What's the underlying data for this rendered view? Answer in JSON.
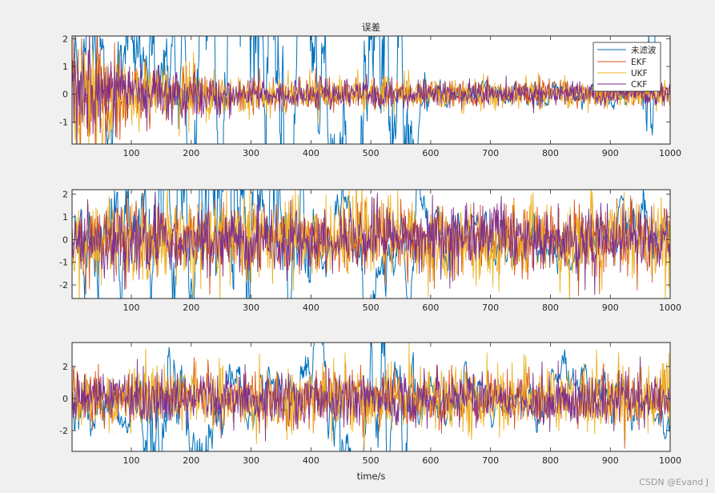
{
  "figure": {
    "background": "#f0f0f0",
    "watermark": "CSDN @Evand J"
  },
  "colors": {
    "unfiltered": "#0072bd",
    "ekf": "#d95319",
    "ukf": "#edb120",
    "ckf": "#7e2f8e",
    "axes_bg": "#ffffff",
    "axes_edge": "#262626"
  },
  "chart_data": [
    {
      "type": "line",
      "title": "误差",
      "xlabel": "",
      "ylabel": "",
      "xlim": [
        1,
        1000
      ],
      "ylim": [
        -1.8,
        2.1
      ],
      "xticks": [
        100,
        200,
        300,
        400,
        500,
        600,
        700,
        800,
        900,
        1000
      ],
      "yticks": [
        -1,
        0,
        1,
        2
      ],
      "legend": {
        "position": "top-right",
        "entries": [
          "未滤波",
          "EKF",
          "UKF",
          "CKF"
        ]
      },
      "series": [
        {
          "name": "未滤波",
          "color": "#0072bd",
          "amplitude_profile": [
            {
              "x": 1,
              "amp": 1.4
            },
            {
              "x": 150,
              "amp": 1.6
            },
            {
              "x": 200,
              "amp": 3.0
            },
            {
              "x": 280,
              "amp": 3.2
            },
            {
              "x": 350,
              "amp": 3.0
            },
            {
              "x": 420,
              "amp": 2.2
            },
            {
              "x": 480,
              "amp": 2.8
            },
            {
              "x": 560,
              "amp": 2.6
            },
            {
              "x": 600,
              "amp": 0.3
            },
            {
              "x": 940,
              "amp": 0.3
            },
            {
              "x": 980,
              "amp": 2.8
            },
            {
              "x": 1000,
              "amp": 2.5
            }
          ]
        },
        {
          "name": "EKF",
          "color": "#d95319",
          "amplitude_profile": [
            {
              "x": 1,
              "amp": 1.1
            },
            {
              "x": 100,
              "amp": 0.6
            },
            {
              "x": 300,
              "amp": 0.3
            },
            {
              "x": 1000,
              "amp": 0.2
            }
          ]
        },
        {
          "name": "UKF",
          "color": "#edb120",
          "amplitude_profile": [
            {
              "x": 1,
              "amp": 1.3
            },
            {
              "x": 100,
              "amp": 0.7
            },
            {
              "x": 300,
              "amp": 0.35
            },
            {
              "x": 1000,
              "amp": 0.22
            }
          ]
        },
        {
          "name": "CKF",
          "color": "#7e2f8e",
          "amplitude_profile": [
            {
              "x": 1,
              "amp": 1.0
            },
            {
              "x": 100,
              "amp": 0.55
            },
            {
              "x": 300,
              "amp": 0.28
            },
            {
              "x": 1000,
              "amp": 0.18
            }
          ]
        }
      ]
    },
    {
      "type": "line",
      "title": "",
      "xlabel": "",
      "ylabel": "",
      "xlim": [
        1,
        1000
      ],
      "ylim": [
        -2.6,
        2.2
      ],
      "xticks": [
        100,
        200,
        300,
        400,
        500,
        600,
        700,
        800,
        900,
        1000
      ],
      "yticks": [
        -2,
        -1,
        0,
        1,
        2
      ],
      "series": [
        {
          "name": "未滤波",
          "color": "#0072bd",
          "amplitude_profile": [
            {
              "x": 1,
              "amp": 1.5
            },
            {
              "x": 60,
              "amp": 1.8
            },
            {
              "x": 150,
              "amp": 2.4
            },
            {
              "x": 250,
              "amp": 3.0
            },
            {
              "x": 350,
              "amp": 2.6
            },
            {
              "x": 420,
              "amp": 1.0
            },
            {
              "x": 600,
              "amp": 1.2
            },
            {
              "x": 660,
              "amp": 0.8
            },
            {
              "x": 1000,
              "amp": 0.8
            }
          ]
        },
        {
          "name": "EKF",
          "color": "#d95319",
          "amplitude_profile": [
            {
              "x": 1,
              "amp": 0.75
            },
            {
              "x": 1000,
              "amp": 0.75
            }
          ]
        },
        {
          "name": "UKF",
          "color": "#edb120",
          "amplitude_profile": [
            {
              "x": 1,
              "amp": 0.95
            },
            {
              "x": 1000,
              "amp": 0.95
            }
          ]
        },
        {
          "name": "CKF",
          "color": "#7e2f8e",
          "amplitude_profile": [
            {
              "x": 1,
              "amp": 0.7
            },
            {
              "x": 1000,
              "amp": 0.7
            }
          ]
        }
      ]
    },
    {
      "type": "line",
      "title": "",
      "xlabel": "time/s",
      "ylabel": "",
      "xlim": [
        1,
        1000
      ],
      "ylim": [
        -3.3,
        3.5
      ],
      "xticks": [
        100,
        200,
        300,
        400,
        500,
        600,
        700,
        800,
        900,
        1000
      ],
      "yticks": [
        -2,
        0,
        2
      ],
      "series": [
        {
          "name": "未滤波",
          "color": "#0072bd",
          "amplitude_profile": [
            {
              "x": 1,
              "amp": 1.2
            },
            {
              "x": 100,
              "amp": 1.4
            },
            {
              "x": 150,
              "amp": 3.0
            },
            {
              "x": 220,
              "amp": 2.6
            },
            {
              "x": 280,
              "amp": 0.9
            },
            {
              "x": 380,
              "amp": 1.0
            },
            {
              "x": 450,
              "amp": 3.2
            },
            {
              "x": 560,
              "amp": 3.0
            },
            {
              "x": 600,
              "amp": 0.9
            },
            {
              "x": 1000,
              "amp": 0.9
            }
          ]
        },
        {
          "name": "EKF",
          "color": "#d95319",
          "amplitude_profile": [
            {
              "x": 1,
              "amp": 0.85
            },
            {
              "x": 1000,
              "amp": 0.85
            }
          ]
        },
        {
          "name": "UKF",
          "color": "#edb120",
          "amplitude_profile": [
            {
              "x": 1,
              "amp": 1.05
            },
            {
              "x": 1000,
              "amp": 1.05
            }
          ]
        },
        {
          "name": "CKF",
          "color": "#7e2f8e",
          "amplitude_profile": [
            {
              "x": 1,
              "amp": 0.8
            },
            {
              "x": 1000,
              "amp": 0.8
            }
          ]
        }
      ]
    }
  ]
}
